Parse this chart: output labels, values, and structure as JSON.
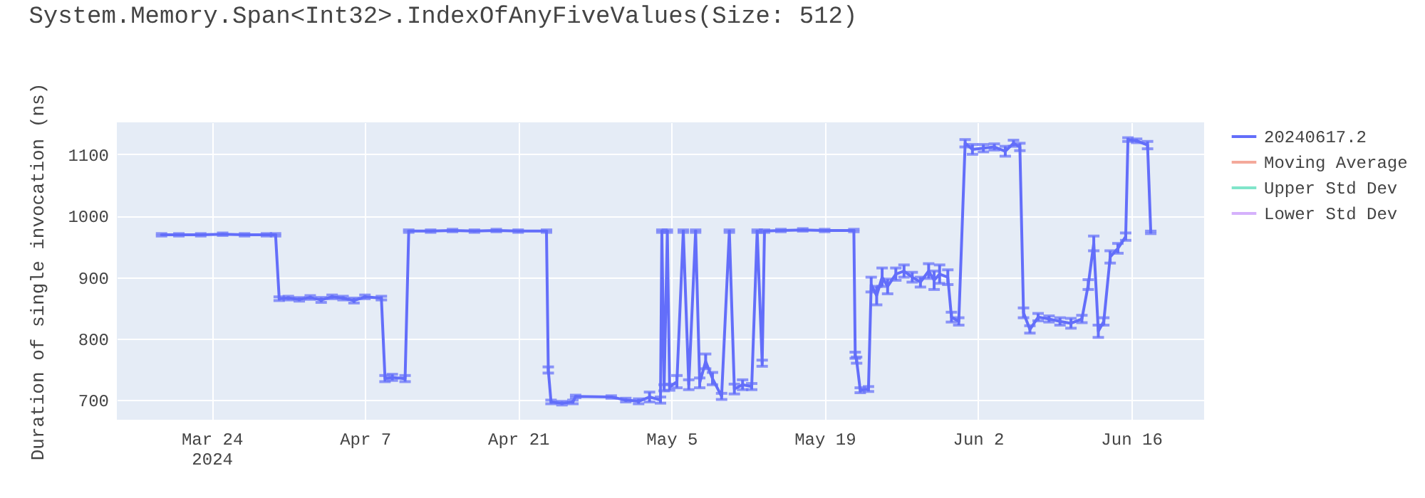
{
  "chart_data": {
    "type": "line",
    "title": "System.Memory.Span<Int32>.IndexOfAnyFiveValues(Size: 512)",
    "ylabel": "Duration of single invocation (ns)",
    "x": [
      "2024-03-19T10:00",
      "2024-03-21",
      "2024-03-23",
      "2024-03-25",
      "2024-03-27",
      "2024-03-29",
      "2024-03-29T20:00",
      "2024-03-30T04:00",
      "2024-03-31",
      "2024-04-01",
      "2024-04-02",
      "2024-04-03",
      "2024-04-04",
      "2024-04-05",
      "2024-04-06",
      "2024-04-07",
      "2024-04-08T12:00",
      "2024-04-08T20:00",
      "2024-04-09T12:00",
      "2024-04-10T16:00",
      "2024-04-11T00:00",
      "2024-04-13",
      "2024-04-15",
      "2024-04-17",
      "2024-04-19",
      "2024-04-21",
      "2024-04-23T14:00",
      "2024-04-23T18:00",
      "2024-04-24",
      "2024-04-25",
      "2024-04-26",
      "2024-04-26T06:00",
      "2024-04-29T12:00",
      "2024-04-30T20:00",
      "2024-05-02",
      "2024-05-03",
      "2024-05-04",
      "2024-05-04T03:00",
      "2024-05-04T08:00",
      "2024-05-04T15:00",
      "2024-05-04T20:00",
      "2024-05-05T12:00",
      "2024-05-06T02:00",
      "2024-05-06T14:00",
      "2024-05-07T05:00",
      "2024-05-07T14:00",
      "2024-05-08T03:00",
      "2024-05-08T18:00",
      "2024-05-09T14:00",
      "2024-05-10T07:00",
      "2024-05-10T18:00",
      "2024-05-11T12:00",
      "2024-05-12T08:00",
      "2024-05-12T20:00",
      "2024-05-13T07:00",
      "2024-05-13T12:00",
      "2024-05-15",
      "2024-05-17",
      "2024-05-19",
      "2024-05-21T16:00",
      "2024-05-21T19:00",
      "2024-05-21T22:00",
      "2024-05-22T06:00",
      "2024-05-23T00:00",
      "2024-05-23T06:00",
      "2024-05-23T18:00",
      "2024-05-24T06:00",
      "2024-05-24T18:00",
      "2024-05-25T12:00",
      "2024-05-26T06:00",
      "2024-05-27",
      "2024-05-27T18:00",
      "2024-05-28T12:00",
      "2024-05-29",
      "2024-05-29T12:00",
      "2024-05-30T06:00",
      "2024-05-30T14:00",
      "2024-05-31T06:00",
      "2024-05-31T20:00",
      "2024-06-01T12:00",
      "2024-06-02T12:00",
      "2024-06-03T12:00",
      "2024-06-04T12:00",
      "2024-06-05T06:00",
      "2024-06-05T20:00",
      "2024-06-06T04:00",
      "2024-06-06T18:00",
      "2024-06-07T12:00",
      "2024-06-08T12:00",
      "2024-06-09T12:00",
      "2024-06-10T12:00",
      "2024-06-11T12:00",
      "2024-06-12T02:00",
      "2024-06-12T14:00",
      "2024-06-13T00:00",
      "2024-06-13T12:00",
      "2024-06-14T02:00",
      "2024-06-14T19:00",
      "2024-06-15T12:00",
      "2024-06-15T17:00",
      "2024-06-16T12:00",
      "2024-06-17T12:00",
      "2024-06-17T19:00"
    ],
    "series": [
      {
        "name": "20240617.2",
        "color": "#636efa",
        "values": [
          969,
          969,
          969,
          970,
          969,
          969,
          969,
          865,
          866,
          864,
          867,
          863,
          868,
          866,
          862,
          868,
          866,
          735,
          737,
          735,
          975,
          975,
          976,
          975,
          976,
          975,
          975,
          749,
          697,
          695,
          697,
          706,
          705,
          700,
          698,
          705,
          700,
          975,
          720,
          975,
          721,
          730,
          975,
          725,
          975,
          728,
          763,
          735,
          706,
          975,
          718,
          725,
          722,
          975,
          760,
          975,
          976,
          977,
          976,
          976,
          773,
          765,
          716,
          718,
          888,
          870,
          900,
          885,
          905,
          910,
          900,
          892,
          910,
          895,
          905,
          900,
          835,
          828,
          1118,
          1108,
          1110,
          1112,
          1105,
          1118,
          1112,
          842,
          815,
          835,
          832,
          828,
          825,
          832,
          888,
          955,
          812,
          828,
          933,
          947,
          966,
          1124,
          1122,
          1115,
          973
        ],
        "errors": [
          2,
          2,
          2,
          2,
          2,
          2,
          2,
          3,
          3,
          3,
          3,
          4,
          3,
          3,
          4,
          3,
          3,
          5,
          5,
          5,
          2,
          2,
          2,
          2,
          2,
          2,
          2,
          5,
          3,
          3,
          3,
          2,
          2,
          3,
          4,
          8,
          5,
          2,
          5,
          2,
          5,
          10,
          2,
          8,
          2,
          8,
          12,
          10,
          5,
          2,
          8,
          8,
          5,
          2,
          5,
          2,
          2,
          2,
          2,
          2,
          5,
          5,
          4,
          4,
          12,
          15,
          15,
          12,
          10,
          10,
          8,
          8,
          12,
          15,
          15,
          12,
          8,
          6,
          6,
          8,
          6,
          5,
          8,
          5,
          6,
          8,
          6,
          6,
          5,
          6,
          8,
          6,
          8,
          12,
          10,
          6,
          10,
          8,
          6,
          3,
          3,
          6,
          2
        ]
      },
      {
        "name": "Moving Average",
        "color": "#f4a99b",
        "values": [
          null,
          null,
          null,
          null,
          null,
          null,
          null,
          null,
          null,
          null,
          null,
          null,
          null,
          null,
          null,
          null,
          null,
          null,
          null,
          null,
          null,
          null,
          null,
          null,
          null,
          null,
          null,
          null,
          null,
          null,
          null,
          null,
          null,
          null,
          null,
          null,
          null,
          null,
          null,
          null,
          null,
          null,
          null,
          null,
          null,
          null,
          null,
          null,
          null,
          null,
          null,
          null,
          null,
          null,
          null,
          null,
          null,
          null,
          null,
          null,
          null,
          null,
          null,
          null,
          null,
          null,
          null,
          null,
          null,
          null,
          null,
          null,
          null,
          null,
          null,
          null,
          null,
          null,
          null,
          null,
          null,
          null,
          null,
          null,
          null,
          null,
          null,
          null,
          null,
          null,
          null,
          null,
          null,
          null,
          null,
          null,
          null,
          null,
          null,
          null,
          null,
          null,
          null
        ]
      },
      {
        "name": "Upper Std Dev",
        "color": "#80e5ca",
        "values": [
          null,
          null,
          null,
          null,
          null,
          null,
          null,
          null,
          null,
          null,
          null,
          null,
          null,
          null,
          null,
          null,
          null,
          null,
          null,
          null,
          null,
          null,
          null,
          null,
          null,
          null,
          null,
          null,
          null,
          null,
          null,
          null,
          null,
          null,
          null,
          null,
          null,
          null,
          null,
          null,
          null,
          null,
          null,
          null,
          null,
          null,
          null,
          null,
          null,
          null,
          null,
          null,
          null,
          null,
          null,
          null,
          null,
          null,
          null,
          null,
          null,
          null,
          null,
          null,
          null,
          null,
          null,
          null,
          null,
          null,
          null,
          null,
          null,
          null,
          null,
          null,
          null,
          null,
          null,
          null,
          null,
          null,
          null,
          null,
          null,
          null,
          null,
          null,
          null,
          null,
          null,
          null,
          null,
          null,
          null,
          null,
          null,
          null,
          null,
          null,
          null,
          null,
          null
        ]
      },
      {
        "name": "Lower Std Dev",
        "color": "#d5b1fc",
        "values": [
          null,
          null,
          null,
          null,
          null,
          null,
          null,
          null,
          null,
          null,
          null,
          null,
          null,
          null,
          null,
          null,
          null,
          null,
          null,
          null,
          null,
          null,
          null,
          null,
          null,
          null,
          null,
          null,
          null,
          null,
          null,
          null,
          null,
          null,
          null,
          null,
          null,
          null,
          null,
          null,
          null,
          null,
          null,
          null,
          null,
          null,
          null,
          null,
          null,
          null,
          null,
          null,
          null,
          null,
          null,
          null,
          null,
          null,
          null,
          null,
          null,
          null,
          null,
          null,
          null,
          null,
          null,
          null,
          null,
          null,
          null,
          null,
          null,
          null,
          null,
          null,
          null,
          null,
          null,
          null,
          null,
          null,
          null,
          null,
          null,
          null,
          null,
          null,
          null,
          null,
          null,
          null,
          null,
          null,
          null,
          null,
          null,
          null,
          null,
          null,
          null,
          null,
          null
        ]
      }
    ],
    "xlim": [
      "2024-03-15T08:00",
      "2024-06-22T16:00"
    ],
    "xticks": [
      {
        "value": "2024-03-24",
        "label": "Mar 24\n2024"
      },
      {
        "value": "2024-04-07",
        "label": "Apr 7"
      },
      {
        "value": "2024-04-21",
        "label": "Apr 21"
      },
      {
        "value": "2024-05-05",
        "label": "May 5"
      },
      {
        "value": "2024-05-19",
        "label": "May 19"
      },
      {
        "value": "2024-06-02",
        "label": "Jun 2"
      },
      {
        "value": "2024-06-16",
        "label": "Jun 16"
      }
    ],
    "ylim": [
      668,
      1152
    ],
    "yticks": [
      700,
      800,
      900,
      1000,
      1100
    ],
    "grid": true,
    "legend": "top right",
    "line_style": "solid",
    "marker": "none"
  }
}
